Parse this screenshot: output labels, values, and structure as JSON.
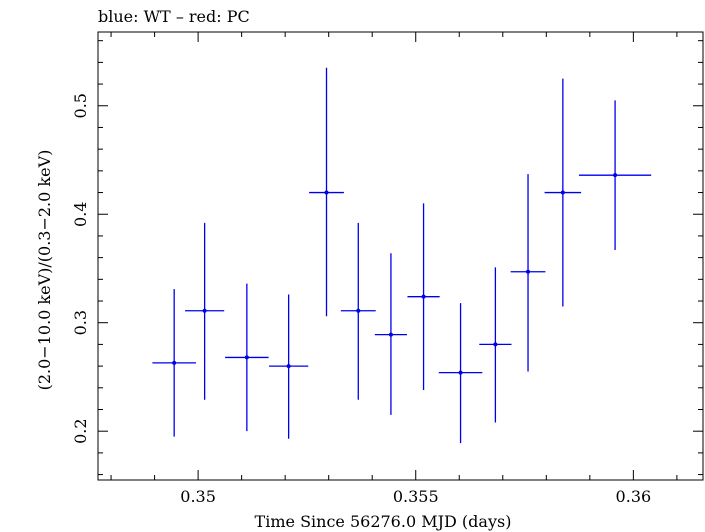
{
  "chart_data": {
    "type": "scatter",
    "title": "blue: WT – red: PC",
    "xlabel": "Time Since 56276.0 MJD (days)",
    "ylabel": "(2.0−10.0 keV)/(0.3−2.0 keV)",
    "xlim": [
      0.3477,
      0.3616
    ],
    "ylim": [
      0.155,
      0.568
    ],
    "xticks": [
      0.35,
      0.355,
      0.36
    ],
    "xtick_labels": [
      "0.35",
      "0.355",
      "0.36"
    ],
    "yticks": [
      0.2,
      0.3,
      0.4,
      0.5
    ],
    "ytick_labels": [
      "0.2",
      "0.3",
      "0.4",
      "0.5"
    ],
    "grid": false,
    "series": [
      {
        "color": "#0000ee",
        "points": [
          {
            "x": 0.34945,
            "xerr": 0.0005,
            "y": 0.263,
            "yerr_low": 0.068,
            "yerr_high": 0.068
          },
          {
            "x": 0.35015,
            "xerr": 0.00045,
            "y": 0.311,
            "yerr_low": 0.082,
            "yerr_high": 0.081
          },
          {
            "x": 0.35112,
            "xerr": 0.0005,
            "y": 0.268,
            "yerr_low": 0.068,
            "yerr_high": 0.068
          },
          {
            "x": 0.35208,
            "xerr": 0.00045,
            "y": 0.26,
            "yerr_low": 0.067,
            "yerr_high": 0.066
          },
          {
            "x": 0.35295,
            "xerr": 0.0004,
            "y": 0.42,
            "yerr_low": 0.114,
            "yerr_high": 0.115
          },
          {
            "x": 0.35368,
            "xerr": 0.0004,
            "y": 0.311,
            "yerr_low": 0.082,
            "yerr_high": 0.081
          },
          {
            "x": 0.35443,
            "xerr": 0.00037,
            "y": 0.289,
            "yerr_low": 0.074,
            "yerr_high": 0.075
          },
          {
            "x": 0.35518,
            "xerr": 0.00037,
            "y": 0.324,
            "yerr_low": 0.086,
            "yerr_high": 0.086
          },
          {
            "x": 0.35603,
            "xerr": 0.0005,
            "y": 0.254,
            "yerr_low": 0.065,
            "yerr_high": 0.064
          },
          {
            "x": 0.35683,
            "xerr": 0.00037,
            "y": 0.28,
            "yerr_low": 0.072,
            "yerr_high": 0.071
          },
          {
            "x": 0.35758,
            "xerr": 0.0004,
            "y": 0.347,
            "yerr_low": 0.092,
            "yerr_high": 0.09
          },
          {
            "x": 0.35838,
            "xerr": 0.00042,
            "y": 0.42,
            "yerr_low": 0.105,
            "yerr_high": 0.105
          },
          {
            "x": 0.35958,
            "xerr": 0.00083,
            "y": 0.436,
            "yerr_low": 0.069,
            "yerr_high": 0.069
          }
        ]
      }
    ]
  }
}
